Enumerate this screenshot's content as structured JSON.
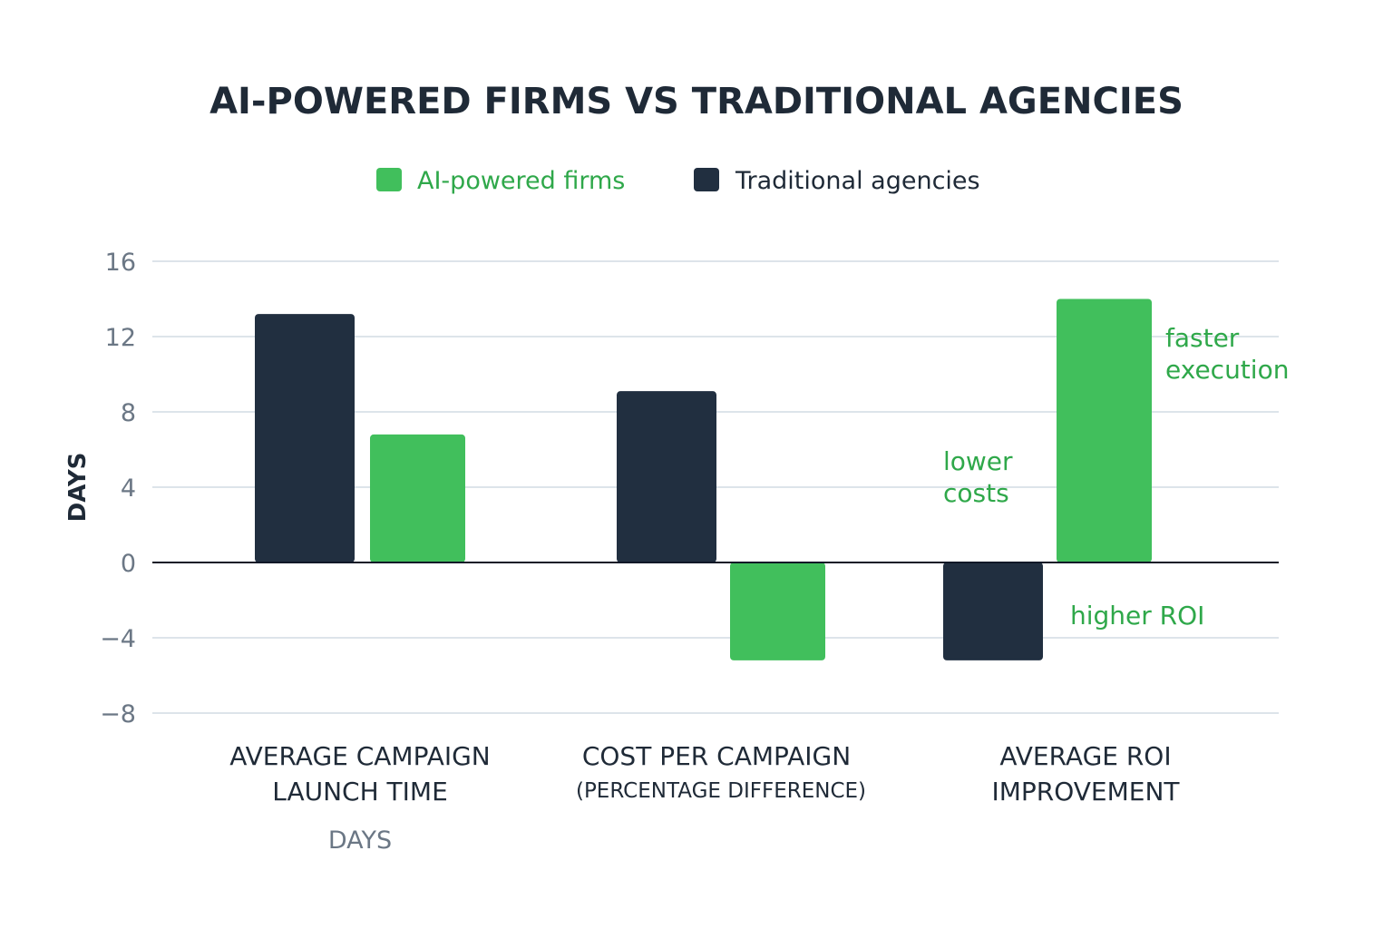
{
  "colors": {
    "ai": "#41bf5c",
    "traditional": "#212f40",
    "ai_text": "#2fa84a",
    "text_dark": "#1f2a37",
    "tick": "#6b7785",
    "grid": "#dde4ea"
  },
  "chart_data": {
    "type": "bar",
    "title": "AI-POWERED FIRMS VS TRADITIONAL AGENCIES",
    "ylabel": "DAYS",
    "ylim": [
      -8,
      16
    ],
    "yticks": [
      16,
      12,
      8,
      4,
      0,
      -4,
      -8
    ],
    "ytick_labels": [
      "16",
      "12",
      "8",
      "4",
      "0",
      "−4",
      "−8"
    ],
    "grid": true,
    "legend_position": "top-center",
    "categories": [
      {
        "line1": "AVERAGE CAMPAIGN",
        "line2": "LAUNCH TIME",
        "sub": "DAYS"
      },
      {
        "line1": "COST PER CAMPAIGN",
        "line2": "(PERCENTAGE DIFFERENCE)",
        "sub": ""
      },
      {
        "line1": "AVERAGE ROI",
        "line2": "IMPROVEMENT",
        "sub": ""
      }
    ],
    "series": [
      {
        "name": "Traditional agencies",
        "color_key": "traditional",
        "values": [
          13.2,
          9.1,
          -5.2
        ]
      },
      {
        "name": "AI-powered firms",
        "color_key": "ai",
        "values": [
          6.8,
          -5.2,
          14
        ]
      }
    ],
    "legend_order": [
      "AI-powered firms",
      "Traditional agencies"
    ],
    "annotations": [
      {
        "id": "lower-costs",
        "lines": [
          "lower",
          "costs"
        ]
      },
      {
        "id": "faster-execution",
        "lines": [
          "faster",
          "execution"
        ]
      },
      {
        "id": "higher-roi",
        "lines": [
          "higher ROI"
        ]
      }
    ]
  }
}
